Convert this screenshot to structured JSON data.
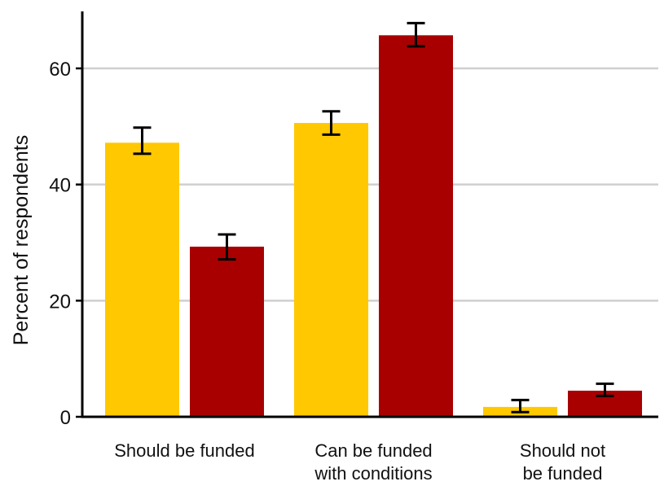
{
  "chart_data": {
    "type": "bar",
    "title": "",
    "xlabel": "",
    "ylabel": "Percent of respondents",
    "ylim": [
      0,
      70
    ],
    "yticks": [
      0,
      20,
      40,
      60
    ],
    "grid": true,
    "categories": [
      [
        "Should be funded"
      ],
      [
        "Can be funded",
        "with conditions"
      ],
      [
        "Should not",
        "be funded"
      ]
    ],
    "series": [
      {
        "color": "#FFC800",
        "values": [
          47.2,
          50.6,
          1.7
        ],
        "error_low": [
          45.3,
          48.6,
          0.8
        ],
        "error_high": [
          49.8,
          52.6,
          2.9
        ]
      },
      {
        "color": "#A80000",
        "values": [
          29.3,
          65.7,
          4.5
        ],
        "error_low": [
          27.1,
          63.8,
          3.6
        ],
        "error_high": [
          31.4,
          67.8,
          5.7
        ]
      }
    ]
  }
}
